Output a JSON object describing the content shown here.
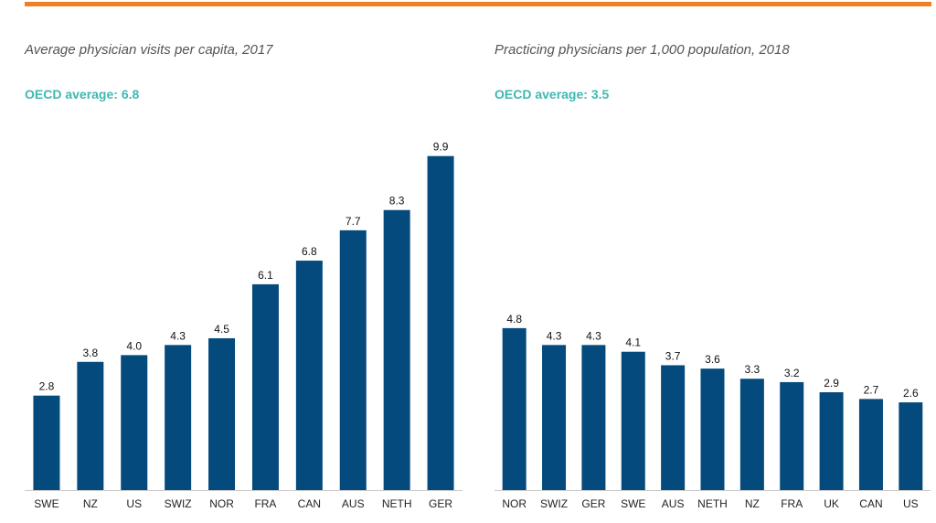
{
  "colors": {
    "bar": "#044a7c",
    "accent_rule": "#f07f22",
    "average_text": "#3fb8b3",
    "axis": "#cccccc"
  },
  "chart_data": [
    {
      "type": "bar",
      "title": "Average physician visits per capita, 2017",
      "average_label": "OECD average: 6.8",
      "categories": [
        "SWE",
        "NZ",
        "US",
        "SWIZ",
        "NOR",
        "FRA",
        "CAN",
        "AUS",
        "NETH",
        "GER"
      ],
      "values": [
        2.8,
        3.8,
        4.0,
        4.3,
        4.5,
        6.1,
        6.8,
        7.7,
        8.3,
        9.9
      ],
      "value_labels": [
        "2.8",
        "3.8",
        "4.0",
        "4.3",
        "4.5",
        "6.1",
        "6.8",
        "7.7",
        "8.3",
        "9.9"
      ],
      "xlabel": "",
      "ylabel": "",
      "ylim": [
        0,
        10
      ]
    },
    {
      "type": "bar",
      "title": "Practicing physicians per 1,000 population, 2018",
      "average_label": "OECD average: 3.5",
      "categories": [
        "NOR",
        "SWIZ",
        "GER",
        "SWE",
        "AUS",
        "NETH",
        "NZ",
        "FRA",
        "UK",
        "CAN",
        "US"
      ],
      "values": [
        4.8,
        4.3,
        4.3,
        4.1,
        3.7,
        3.6,
        3.3,
        3.2,
        2.9,
        2.7,
        2.6
      ],
      "value_labels": [
        "4.8",
        "4.3",
        "4.3",
        "4.1",
        "3.7",
        "3.6",
        "3.3",
        "3.2",
        "2.9",
        "2.7",
        "2.6"
      ],
      "xlabel": "",
      "ylabel": "",
      "ylim": [
        0,
        10
      ]
    }
  ]
}
